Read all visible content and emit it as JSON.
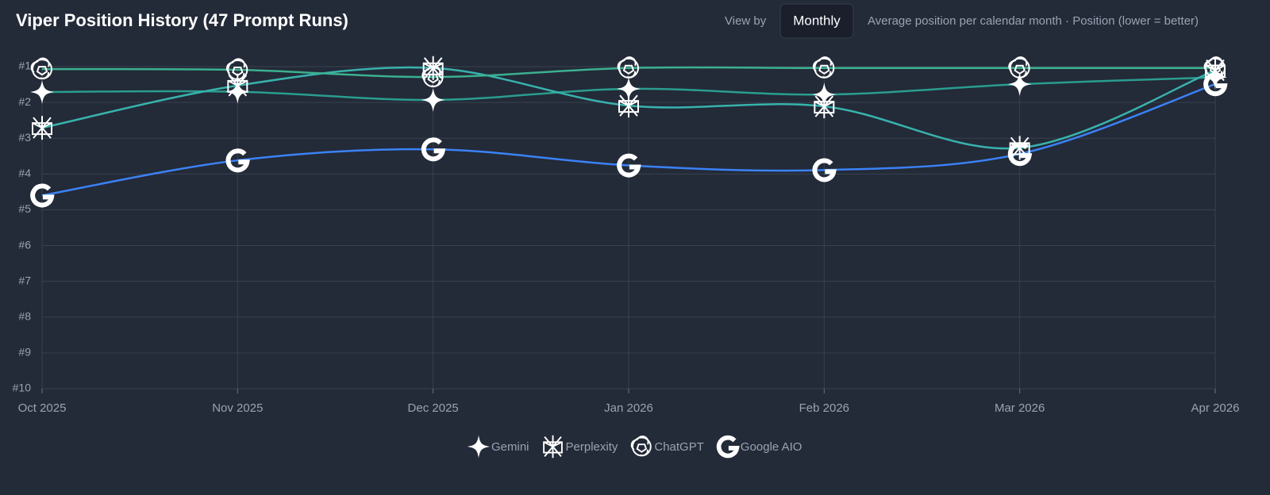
{
  "chart_data": {
    "type": "line",
    "title": "Viper Position History (47 Prompt Runs)",
    "view_by_label": "View by",
    "view_mode": "Monthly",
    "subtitle": "Average position per calendar month · Position (lower = better)",
    "categories": [
      "Oct 2025",
      "Nov 2025",
      "Dec 2025",
      "Jan 2026",
      "Feb 2026",
      "Mar 2026",
      "Apr 2026"
    ],
    "series": [
      {
        "name": "Gemini",
        "color": "#2a9d8f",
        "values": [
          1.71,
          1.7,
          1.93,
          1.62,
          1.78,
          1.49,
          1.3
        ]
      },
      {
        "name": "Perplexity",
        "color": "#38b2ac",
        "values": [
          2.71,
          1.53,
          1.04,
          2.09,
          2.11,
          3.27,
          1.1
        ]
      },
      {
        "name": "ChatGPT",
        "color": "#3bb08f",
        "values": [
          1.07,
          1.09,
          1.29,
          1.04,
          1.04,
          1.04,
          1.04
        ]
      },
      {
        "name": "Google AIO",
        "color": "#3b82f6",
        "values": [
          4.6,
          3.62,
          3.31,
          3.76,
          3.89,
          3.44,
          1.49
        ]
      }
    ],
    "ylim": [
      1,
      10
    ],
    "y_inverted": true,
    "yticks": [
      {
        "value": 1,
        "label": "#1"
      },
      {
        "value": 2,
        "label": "#2"
      },
      {
        "value": 3,
        "label": "#3"
      },
      {
        "value": 4,
        "label": "#4"
      },
      {
        "value": 5,
        "label": "#5"
      },
      {
        "value": 6,
        "label": "#6"
      },
      {
        "value": 7,
        "label": "#7"
      },
      {
        "value": 8,
        "label": "#8"
      },
      {
        "value": 9,
        "label": "#9"
      },
      {
        "value": 10,
        "label": "#10"
      }
    ],
    "grid": true,
    "legend": "bottom"
  }
}
